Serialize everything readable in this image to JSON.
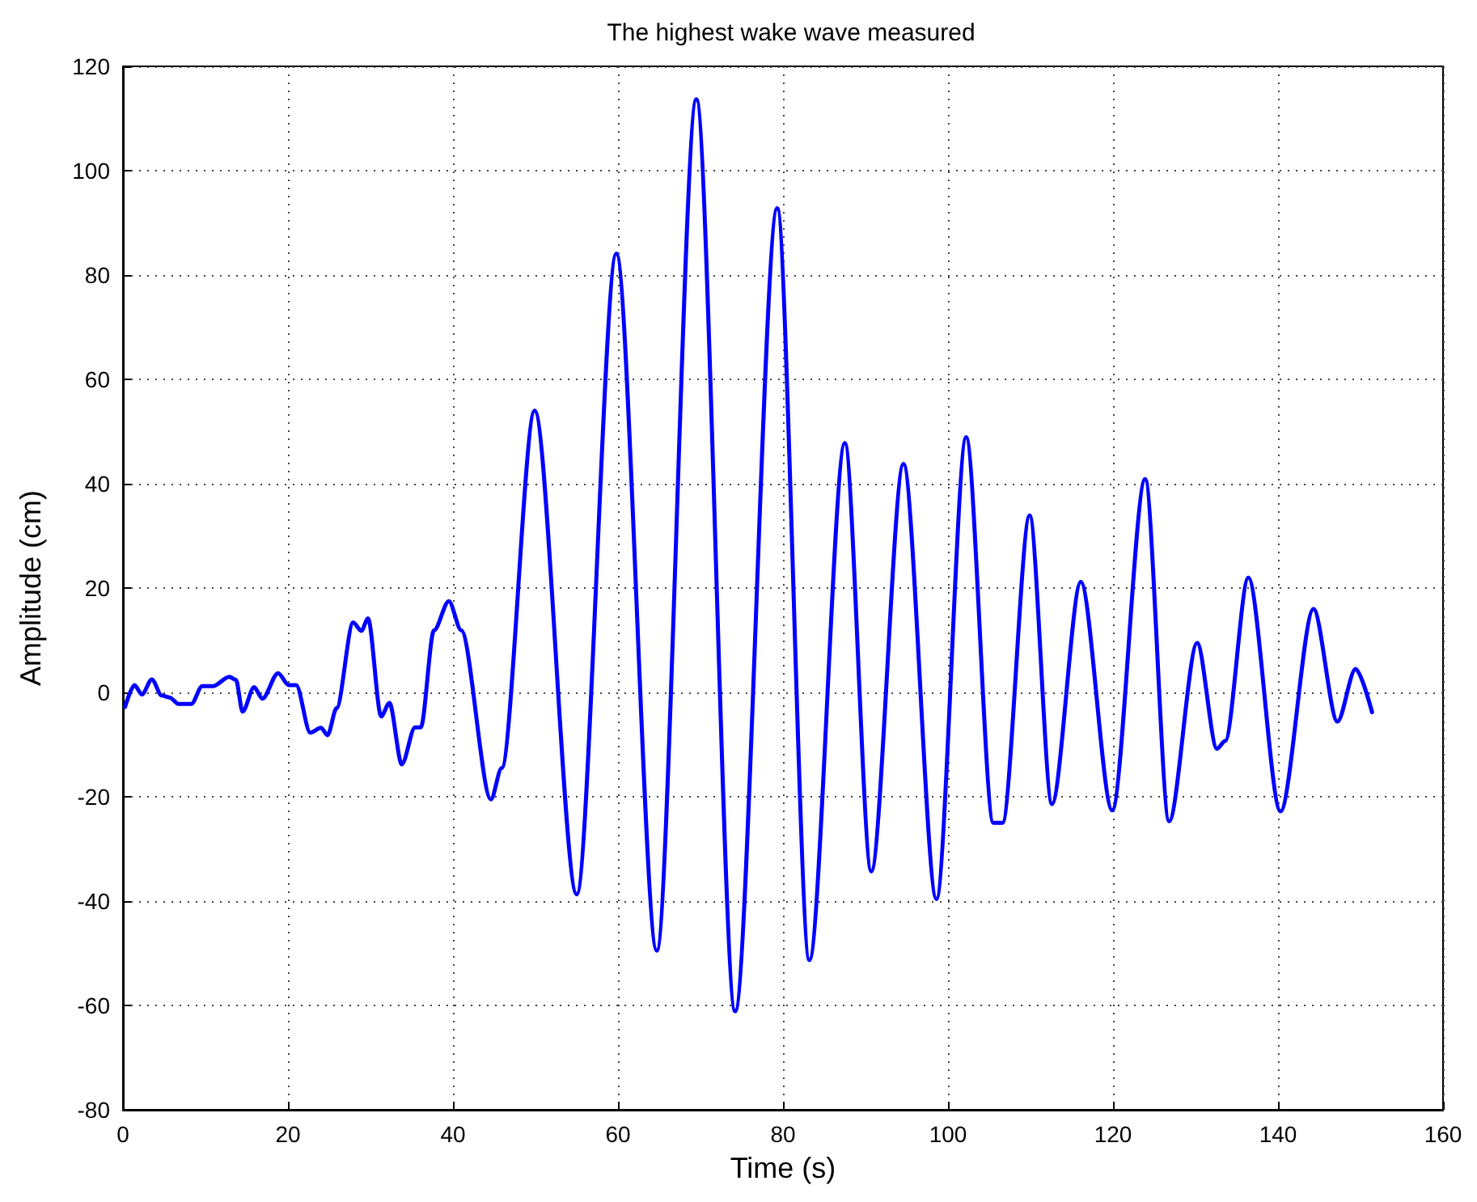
{
  "chart_data": {
    "type": "line",
    "title": "The highest wake wave measured",
    "xlabel": "Time (s)",
    "ylabel": "Amplitude (cm)",
    "x": [
      0.25,
      1.4,
      2.3,
      3.5,
      4.7,
      5.7,
      6.7,
      8.3,
      9.6,
      10.9,
      12.9,
      13.7,
      14.5,
      15.9,
      16.9,
      18.8,
      20.1,
      21,
      22.7,
      24,
      24.8,
      25.9,
      27.9,
      28.9,
      29.7,
      31.3,
      32.3,
      33.8,
      35.4,
      36.1,
      37.7,
      39.5,
      41,
      44.6,
      45.9,
      49.9,
      55,
      59.8,
      64.7,
      69.5,
      74.2,
      79.3,
      83.2,
      87.5,
      90.7,
      94.6,
      98.6,
      102.2,
      105.5,
      106.6,
      109.9,
      112.6,
      116.1,
      119.9,
      123.9,
      126.8,
      130.2,
      132.6,
      133.6,
      136.4,
      140.3,
      144.3,
      147.2,
      149.4,
      151.4
    ],
    "series": [
      {
        "color": "#0000ff",
        "values": [
          -2.8,
          1.4,
          -0.4,
          2.5,
          -0.6,
          -1,
          -2.2,
          -2.2,
          1.2,
          1.2,
          3,
          2.4,
          -3.7,
          1,
          -1.2,
          3.7,
          1.4,
          1.4,
          -7.7,
          -6.8,
          -8.2,
          -3,
          13.4,
          11.8,
          14.2,
          -4.6,
          -2,
          -13.8,
          -6.7,
          -6.7,
          11.9,
          17.5,
          11.9,
          -20.5,
          -14.5,
          54,
          -38.7,
          84.1,
          -49.5,
          113.7,
          -61.1,
          92.8,
          -51.3,
          47.8,
          -34.3,
          43.8,
          -39.6,
          48.9,
          -25,
          -25,
          33.9,
          -21.4,
          21.2,
          -22.6,
          40.9,
          -24.7,
          9.5,
          -10.8,
          -9.3,
          22,
          -22.8,
          16,
          -5.6,
          4.5,
          -3.8
        ]
      }
    ],
    "xlim": [
      0,
      160
    ],
    "xticks": [
      0,
      20,
      40,
      60,
      80,
      100,
      120,
      140,
      160
    ],
    "ylim": [
      -80,
      120
    ],
    "yticks": [
      -80,
      -60,
      -40,
      -20,
      0,
      20,
      40,
      60,
      80,
      100,
      120
    ],
    "grid": true,
    "line_style": "solid",
    "marker": "none"
  }
}
